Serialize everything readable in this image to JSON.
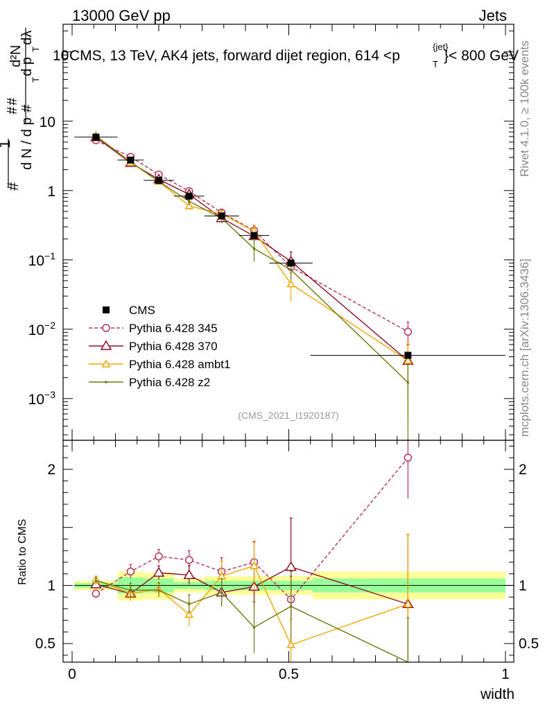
{
  "header": {
    "energy": "13000 GeV pp",
    "category": "Jets",
    "title": "CMS, 13 TeV, AK4 jets, forward dijet region, 614 <p",
    "title_sup": "{jet}",
    "title_sub": "T",
    "title_tail": "}< 800 GeV"
  },
  "side_labels": {
    "rivet": "Rivet 4.1.0, ≥ 100k events",
    "mcplots": "mcplots.cern.ch [arXiv:1306.3436]"
  },
  "analysis_id": "(CMS_2021_I1920187)",
  "colors": {
    "cms": "#000000",
    "p345": "#b33355",
    "p370": "#8b1026",
    "ambt1": "#f0a500",
    "z2": "#6e7a10",
    "band_inner": "#99ff99",
    "band_outer": "#ffff99"
  },
  "chart_data": [
    {
      "id": "main",
      "type": "line",
      "yscale": "log",
      "xlim": [
        0,
        1
      ],
      "ylim": [
        0.00025,
        250
      ],
      "ylabel": "d²N / dp_T dλ × 1/(dN/dp_T)",
      "ylabel_parts": [
        "1",
        "d N / d p",
        "T",
        "d²N",
        "d p",
        "T",
        "dλ",
        "#",
        "#",
        "#",
        "#"
      ],
      "yticks": [
        {
          "v": 0.001,
          "b": "10",
          "e": "−3"
        },
        {
          "v": 0.01,
          "b": "10",
          "e": "−2"
        },
        {
          "v": 0.1,
          "b": "10",
          "e": "−1"
        },
        {
          "v": 1,
          "b": "1",
          "e": ""
        },
        {
          "v": 10,
          "b": "10",
          "e": ""
        },
        {
          "v": 100,
          "b": "10",
          "e": "2"
        }
      ],
      "cms": {
        "name": "CMS",
        "x": [
          0.055,
          0.135,
          0.2,
          0.27,
          0.345,
          0.42,
          0.505,
          0.775
        ],
        "xerr": [
          0.05,
          0.03,
          0.035,
          0.035,
          0.04,
          0.035,
          0.05,
          0.225
        ],
        "y": [
          5.9,
          2.75,
          1.4,
          0.83,
          0.43,
          0.225,
          0.09,
          0.0042
        ]
      },
      "series": [
        {
          "name": "Pythia 6.428 345",
          "key": "p345",
          "marker": "circle",
          "dash": true,
          "y": [
            5.3,
            3.05,
            1.7,
            0.98,
            0.48,
            0.265,
            0.079,
            0.0092
          ],
          "err": [
            0.3,
            0.15,
            0.15,
            0.1,
            0.06,
            0.05,
            0.015,
            0.0035
          ]
        },
        {
          "name": "Pythia 6.428 370",
          "key": "p370",
          "marker": "triangle",
          "dash": false,
          "y": [
            5.9,
            2.5,
            1.45,
            0.88,
            0.4,
            0.22,
            0.095,
            0.0035
          ],
          "err": [
            0.3,
            0.15,
            0.15,
            0.1,
            0.06,
            0.05,
            0.035,
            0.0025
          ]
        },
        {
          "name": "Pythia 6.428 ambt1",
          "key": "ambt1",
          "marker": "triangle-small",
          "dash": false,
          "y": [
            6.2,
            2.55,
            1.35,
            0.6,
            0.46,
            0.26,
            0.045,
            0.0035
          ],
          "err": [
            0.3,
            0.15,
            0.12,
            0.07,
            0.06,
            0.05,
            0.02,
            0.003
          ]
        },
        {
          "name": "Pythia 6.428 z2",
          "key": "z2",
          "marker": "dot",
          "dash": false,
          "y": [
            6.1,
            2.6,
            1.35,
            0.7,
            0.4,
            0.145,
            0.072,
            0.0017
          ],
          "err": [
            0.3,
            0.15,
            0.12,
            0.08,
            0.05,
            0.05,
            0.02,
            0.0015
          ]
        }
      ]
    },
    {
      "id": "ratio",
      "type": "line",
      "yscale": "linear",
      "xlim": [
        0,
        1
      ],
      "ylim": [
        0.34,
        2.25
      ],
      "xlabel": "width",
      "ylabel": "Ratio to CMS",
      "xticks": [
        {
          "v": 0,
          "label": "0"
        },
        {
          "v": 0.5,
          "label": "0.5"
        },
        {
          "v": 1,
          "label": "1"
        }
      ],
      "yticks": [
        {
          "v": 0.5,
          "label": "0.5"
        },
        {
          "v": 1,
          "label": "1"
        },
        {
          "v": 2,
          "label": "2"
        }
      ],
      "bands": [
        {
          "x0": 0.005,
          "x1": 0.105,
          "inner": [
            0.98,
            1.02
          ],
          "outer": [
            0.96,
            1.04
          ]
        },
        {
          "x0": 0.105,
          "x1": 0.165,
          "inner": [
            0.93,
            1.07
          ],
          "outer": [
            0.87,
            1.12
          ]
        },
        {
          "x0": 0.165,
          "x1": 0.235,
          "inner": [
            0.94,
            1.06
          ],
          "outer": [
            0.88,
            1.11
          ]
        },
        {
          "x0": 0.235,
          "x1": 0.305,
          "inner": [
            0.97,
            1.03
          ],
          "outer": [
            0.94,
            1.06
          ]
        },
        {
          "x0": 0.305,
          "x1": 0.385,
          "inner": [
            0.96,
            1.04
          ],
          "outer": [
            0.92,
            1.08
          ]
        },
        {
          "x0": 0.385,
          "x1": 0.455,
          "inner": [
            0.96,
            1.04
          ],
          "outer": [
            0.92,
            1.08
          ]
        },
        {
          "x0": 0.455,
          "x1": 0.555,
          "inner": [
            0.96,
            1.04
          ],
          "outer": [
            0.92,
            1.08
          ]
        },
        {
          "x0": 0.555,
          "x1": 1.0,
          "inner": [
            0.94,
            1.06
          ],
          "outer": [
            0.88,
            1.12
          ]
        }
      ],
      "series": [
        {
          "key": "p345",
          "y": [
            0.93,
            1.12,
            1.25,
            1.22,
            1.12,
            1.2,
            0.88,
            2.1
          ],
          "err": [
            0.03,
            0.06,
            0.06,
            0.08,
            0.12,
            0.18,
            0.2,
            0.35
          ]
        },
        {
          "key": "p370",
          "y": [
            1.01,
            0.93,
            1.11,
            1.09,
            0.94,
            0.99,
            1.16,
            0.84
          ],
          "err": [
            0.03,
            0.06,
            0.06,
            0.08,
            0.12,
            0.18,
            0.42,
            0.6
          ]
        },
        {
          "key": "ambt1",
          "y": [
            1.05,
            0.93,
            0.97,
            0.75,
            1.08,
            1.17,
            0.49,
            0.84
          ],
          "err": [
            0.03,
            0.06,
            0.06,
            0.1,
            0.13,
            0.2,
            0.22,
            0.6
          ]
        },
        {
          "key": "z2",
          "y": [
            1.04,
            0.96,
            0.96,
            0.84,
            0.94,
            0.64,
            0.82,
            0.32
          ],
          "err": [
            0.03,
            0.06,
            0.06,
            0.08,
            0.12,
            0.22,
            0.3,
            0.4
          ]
        }
      ]
    }
  ]
}
